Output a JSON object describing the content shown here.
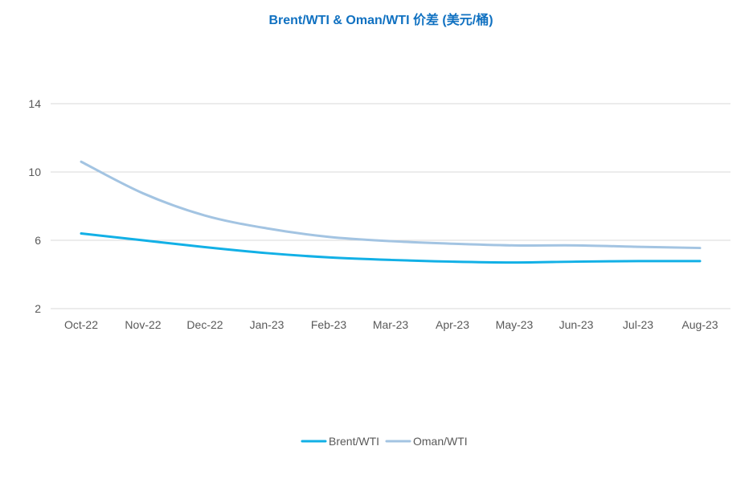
{
  "chart_data": {
    "type": "line",
    "title": "Brent/WTI & Oman/WTI 价差 (美元/桶)",
    "xlabel": "",
    "ylabel": "",
    "categories": [
      "Oct-22",
      "Nov-22",
      "Dec-22",
      "Jan-23",
      "Feb-23",
      "Mar-23",
      "Apr-23",
      "May-23",
      "Jun-23",
      "Jul-23",
      "Aug-23"
    ],
    "ylim": [
      2,
      14
    ],
    "yticks": [
      2,
      6,
      10,
      14
    ],
    "grid": true,
    "legend_position": "bottom",
    "series": [
      {
        "name": "Brent/WTI",
        "color": "#12b0e6",
        "values": [
          6.4,
          6.0,
          5.6,
          5.25,
          5.0,
          4.85,
          4.75,
          4.7,
          4.75,
          4.78,
          4.78
        ]
      },
      {
        "name": "Oman/WTI",
        "color": "#a3c4e2",
        "values": [
          10.6,
          8.75,
          7.45,
          6.7,
          6.2,
          5.95,
          5.8,
          5.7,
          5.7,
          5.62,
          5.55
        ]
      }
    ],
    "colors": {
      "title": "#1071c1",
      "tick_text": "#595959",
      "grid": "#d9d9d9",
      "legend_text": "#595959"
    }
  }
}
